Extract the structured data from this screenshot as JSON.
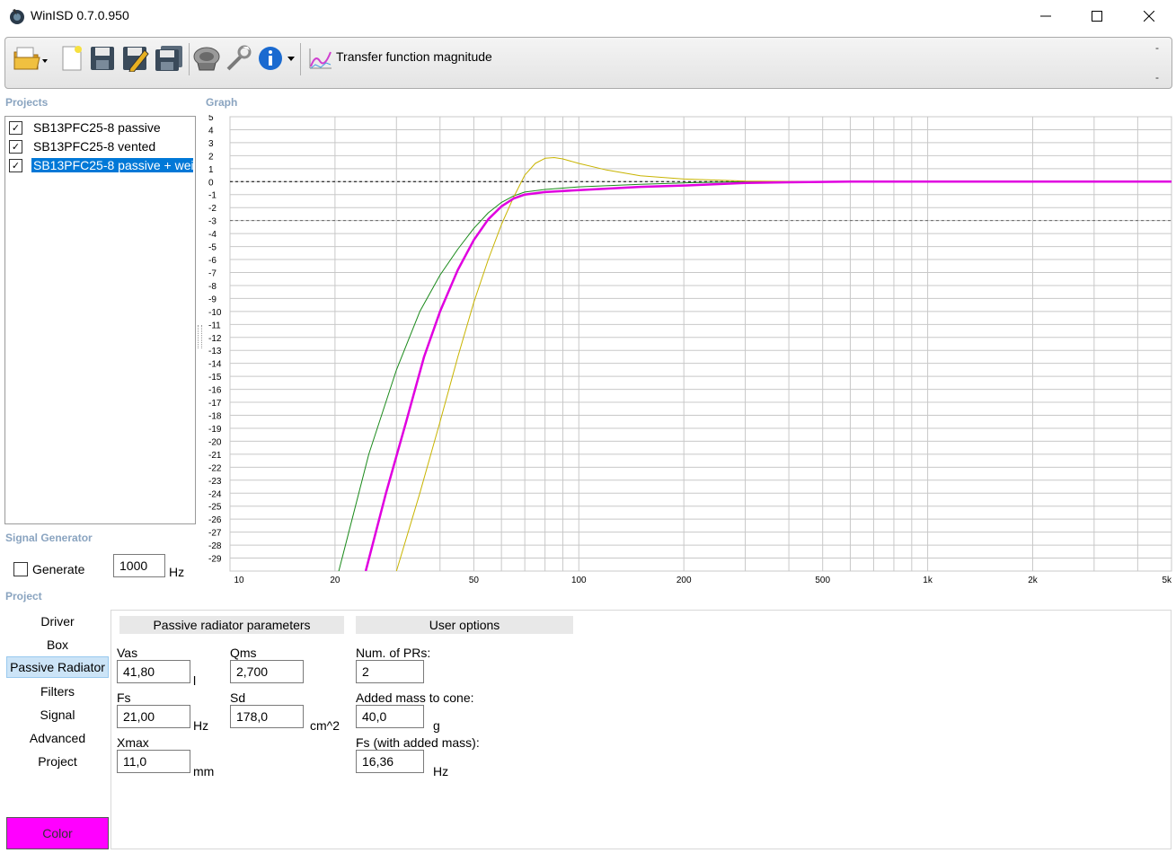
{
  "window": {
    "title": "WinISD 0.7.0.950",
    "minimize": "—",
    "maximize": "☐",
    "close": "✕"
  },
  "toolbar": {
    "icons": [
      "open-folder-icon",
      "new-project-icon",
      "save-icon",
      "save-as-icon",
      "save-all-icon",
      "driver-speaker-icon",
      "tools-wrench-icon",
      "info-icon",
      "graph-select-icon"
    ],
    "graph_label": "Transfer function magnitude",
    "dash_top": "-",
    "dash_bottom": "-"
  },
  "projects": {
    "label": "Projects",
    "items": [
      {
        "label": "SB13PFC25-8 passive",
        "checked": true,
        "selected": false
      },
      {
        "label": "SB13PFC25-8 vented",
        "checked": true,
        "selected": false
      },
      {
        "label": "SB13PFC25-8 passive + wei",
        "checked": true,
        "selected": true
      }
    ]
  },
  "graph": {
    "label": "Graph"
  },
  "signal_generator": {
    "label": "Signal Generator",
    "generate_label": "Generate",
    "frequency": "1000",
    "unit": "Hz"
  },
  "project": {
    "label": "Project",
    "nav": [
      "Driver",
      "Box",
      "Passive Radiator",
      "Filters",
      "Signal",
      "Advanced",
      "Project"
    ],
    "active_nav": "Passive Radiator",
    "color_button": "Color",
    "color_value": "#ff00ff"
  },
  "pr_params": {
    "header": "Passive radiator parameters",
    "vas": {
      "label": "Vas",
      "value": "41,80",
      "unit": "l"
    },
    "qms": {
      "label": "Qms",
      "value": "2,700"
    },
    "fs": {
      "label": "Fs",
      "value": "21,00",
      "unit": "Hz"
    },
    "sd": {
      "label": "Sd",
      "value": "178,0",
      "unit": "cm^2"
    },
    "xmax": {
      "label": "Xmax",
      "value": "11,0",
      "unit": "mm"
    }
  },
  "user_options": {
    "header": "User options",
    "num_prs": {
      "label": "Num. of PRs:",
      "value": "2"
    },
    "added_mass": {
      "label": "Added mass to cone:",
      "value": "40,0",
      "unit": "g"
    },
    "fs_added": {
      "label": "Fs (with added mass):",
      "value": "16,36",
      "unit": "Hz"
    }
  },
  "chart_data": {
    "type": "line",
    "title": "Transfer function magnitude",
    "x_scale": "log",
    "xlim": [
      10,
      5000
    ],
    "ylim": [
      -30,
      5
    ],
    "x_tick_labels": [
      "10",
      "20",
      "50",
      "100",
      "200",
      "500",
      "1k",
      "2k",
      "5k"
    ],
    "x_tick_values": [
      10,
      20,
      50,
      100,
      200,
      500,
      1000,
      2000,
      5000
    ],
    "y_tick_values": [
      5,
      4,
      3,
      2,
      1,
      0,
      -1,
      -2,
      -3,
      -4,
      -5,
      -6,
      -7,
      -8,
      -9,
      -10,
      -11,
      -12,
      -13,
      -14,
      -15,
      -16,
      -17,
      -18,
      -19,
      -20,
      -21,
      -22,
      -23,
      -24,
      -25,
      -26,
      -27,
      -28,
      -29
    ],
    "reference_lines": [
      0,
      -3
    ],
    "grid": true,
    "series": [
      {
        "color": "#1a8a1a",
        "width": 1,
        "points": [
          [
            20.5,
            -30
          ],
          [
            25,
            -21
          ],
          [
            30,
            -14.5
          ],
          [
            35,
            -10
          ],
          [
            40,
            -7.2
          ],
          [
            45,
            -5.2
          ],
          [
            50,
            -3.6
          ],
          [
            55,
            -2.4
          ],
          [
            60,
            -1.6
          ],
          [
            65,
            -1.1
          ],
          [
            70,
            -0.8
          ],
          [
            80,
            -0.6
          ],
          [
            100,
            -0.4
          ],
          [
            150,
            -0.2
          ],
          [
            200,
            -0.1
          ],
          [
            300,
            0
          ],
          [
            5000,
            0
          ]
        ]
      },
      {
        "color": "#c8b400",
        "width": 1,
        "points": [
          [
            30,
            -30
          ],
          [
            35,
            -24
          ],
          [
            40,
            -18.5
          ],
          [
            45,
            -13.5
          ],
          [
            50,
            -9.3
          ],
          [
            55,
            -6
          ],
          [
            60,
            -3.3
          ],
          [
            65,
            -1.2
          ],
          [
            70,
            0.5
          ],
          [
            75,
            1.4
          ],
          [
            80,
            1.8
          ],
          [
            85,
            1.85
          ],
          [
            90,
            1.75
          ],
          [
            100,
            1.4
          ],
          [
            120,
            0.9
          ],
          [
            150,
            0.45
          ],
          [
            200,
            0.2
          ],
          [
            300,
            0.05
          ],
          [
            500,
            0
          ],
          [
            5000,
            0
          ]
        ]
      },
      {
        "color": "#e000e0",
        "width": 2.5,
        "points": [
          [
            24.5,
            -30
          ],
          [
            28,
            -24
          ],
          [
            32,
            -18.5
          ],
          [
            36,
            -13.5
          ],
          [
            40,
            -10
          ],
          [
            45,
            -6.8
          ],
          [
            50,
            -4.5
          ],
          [
            55,
            -2.9
          ],
          [
            60,
            -1.9
          ],
          [
            65,
            -1.3
          ],
          [
            70,
            -1
          ],
          [
            80,
            -0.8
          ],
          [
            100,
            -0.65
          ],
          [
            150,
            -0.4
          ],
          [
            200,
            -0.3
          ],
          [
            300,
            -0.1
          ],
          [
            400,
            -0.05
          ],
          [
            600,
            0
          ],
          [
            5000,
            0
          ]
        ]
      }
    ]
  }
}
